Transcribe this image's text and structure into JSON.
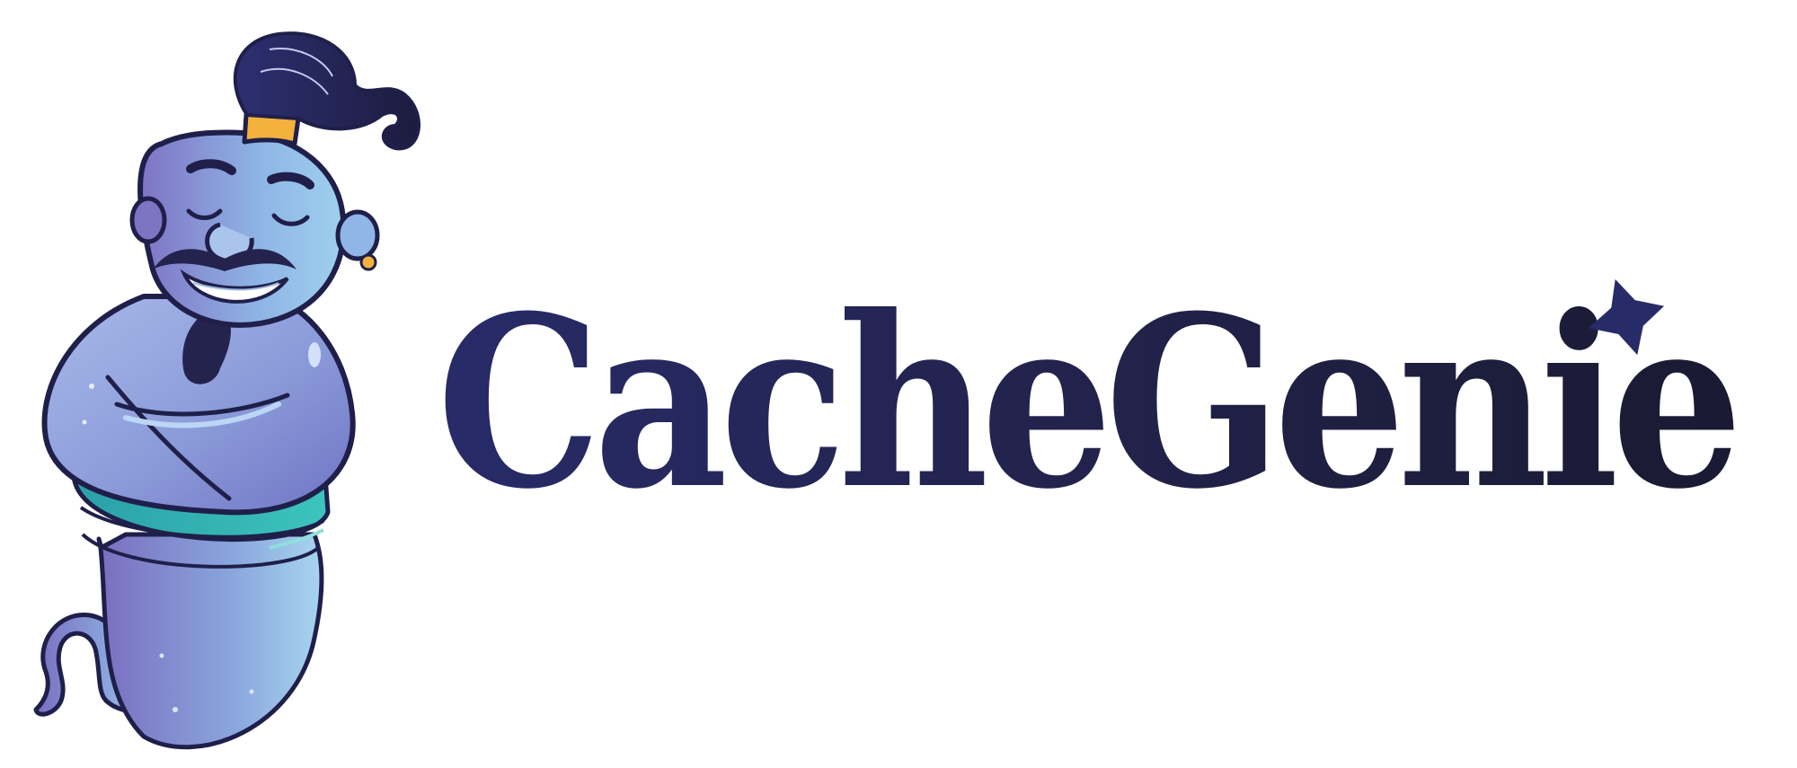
{
  "logo": {
    "wordmark": "CacheGenie",
    "colors": {
      "wordmark_start": "#272b68",
      "wordmark_end": "#1a1a33",
      "genie_body": "#8fa8e0",
      "genie_purple": "#7b6fbf",
      "genie_sash": "#2fb8b5",
      "genie_hair": "#23234e",
      "hair_band": "#f4b13b",
      "outline": "#1f1f4a"
    },
    "icons": {
      "mascot": "genie-mascot-icon",
      "star": "star-icon"
    }
  }
}
